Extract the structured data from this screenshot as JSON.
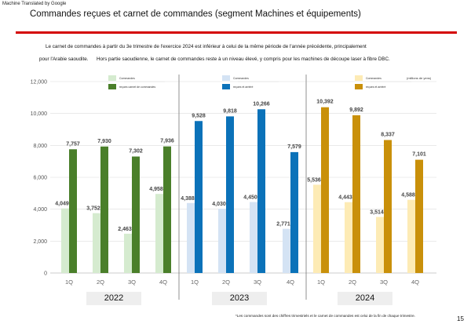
{
  "header": {
    "machine_translated": "Machine Translated by Google",
    "title": "Commandes reçues et carnet de commandes (segment Machines et équipements)"
  },
  "description": [
    "Le carnet de commandes à partir du 3e trimestre de l'exercice 2024 est inférieur à celui de la même période de l'année précédente, principalement",
    "pour l'Arabie saoudite.      Hors partie saoudienne, le carnet de commandes reste à un niveau élevé, y compris pour les machines de découpe laser à fibre DBC."
  ],
  "footnote": "*Les commandes sont des chiffres trimestriels et le carnet de commandes est celui de la fin de chaque trimestre.",
  "page_number": "15",
  "chart_data": {
    "type": "bar",
    "units": "(millions de yens)",
    "ylim": [
      0,
      12000
    ],
    "yticks": [
      "0",
      "2,000",
      "4,000",
      "6,000",
      "8,000",
      "10,000",
      "12,000"
    ],
    "categories": [
      "1Q",
      "2Q",
      "3Q",
      "4Q",
      "1Q",
      "2Q",
      "3Q",
      "4Q",
      "1Q",
      "2Q",
      "3Q",
      "4Q"
    ],
    "groups": [
      {
        "year": "2022",
        "legend": [
          "Commandes",
          "reçues carnet de commandes"
        ],
        "colors": [
          "#d5ebcf",
          "#4a7f2a"
        ],
        "orders": [
          4049,
          3752,
          2463,
          4958
        ],
        "backlog": [
          7757,
          7930,
          7302,
          7936
        ]
      },
      {
        "year": "2023",
        "legend": [
          "Commandes",
          "reçues et arriéré"
        ],
        "colors": [
          "#d4e3f4",
          "#0b72b9"
        ],
        "orders": [
          4388,
          4030,
          4450,
          2771
        ],
        "backlog": [
          9528,
          9818,
          10266,
          7579
        ]
      },
      {
        "year": "2024",
        "legend": [
          "Commandes",
          "reçues et arriéré"
        ],
        "colors": [
          "#fdebb5",
          "#c9900a"
        ],
        "orders": [
          5536,
          4443,
          3514,
          4588
        ],
        "backlog": [
          10392,
          9892,
          8337,
          7101
        ]
      }
    ]
  }
}
